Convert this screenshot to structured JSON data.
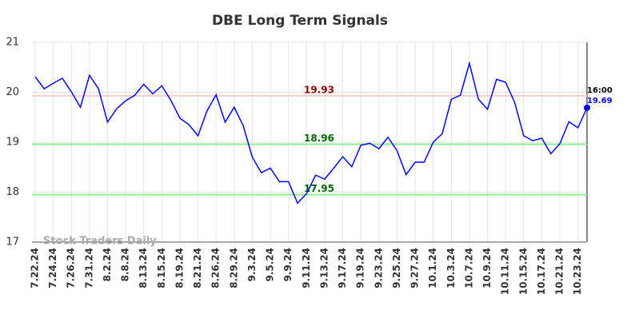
{
  "chart_data": {
    "type": "line",
    "title": "DBE Long Term Signals",
    "categories": [
      "7.22.24",
      null,
      "7.24.24",
      null,
      "7.26.24",
      null,
      "7.31.24",
      null,
      "8.2.24",
      null,
      "8.8.24",
      null,
      "8.13.24",
      null,
      "8.15.24",
      null,
      "8.19.24",
      null,
      "8.21.24",
      null,
      "8.26.24",
      null,
      "8.29.24",
      null,
      "9.3.24",
      null,
      "9.5.24",
      null,
      "9.9.24",
      null,
      "9.11.24",
      null,
      "9.13.24",
      null,
      "9.17.24",
      null,
      "9.19.24",
      null,
      "9.23.24",
      null,
      "9.25.24",
      null,
      "9.27.24",
      null,
      "10.1.24",
      null,
      "10.3.24",
      null,
      "10.7.24",
      null,
      "10.9.24",
      null,
      "10.11.24",
      null,
      "10.15.24",
      null,
      "10.17.24",
      null,
      "10.21.24",
      null,
      "10.23.24",
      null
    ],
    "values": [
      20.31,
      20.07,
      20.18,
      20.28,
      20.01,
      19.7,
      20.34,
      20.07,
      19.4,
      19.67,
      19.83,
      19.94,
      20.16,
      19.97,
      20.13,
      19.84,
      19.48,
      19.35,
      19.13,
      19.63,
      19.95,
      19.4,
      19.7,
      19.33,
      18.7,
      18.39,
      18.48,
      18.21,
      18.21,
      17.78,
      17.97,
      18.34,
      18.26,
      18.48,
      18.71,
      18.51,
      18.94,
      18.98,
      18.87,
      19.1,
      18.83,
      18.35,
      18.6,
      18.6,
      19.0,
      19.17,
      19.86,
      19.94,
      20.58,
      19.86,
      19.66,
      20.26,
      20.2,
      19.8,
      19.13,
      19.03,
      19.08,
      18.77,
      18.97,
      19.41,
      19.29,
      19.69
    ],
    "color": "#0000ff",
    "ylim": [
      17,
      21
    ],
    "yticks": [
      17,
      18,
      19,
      20,
      21
    ],
    "grid": true,
    "levels": [
      {
        "value": 19.93,
        "line_color": "#ffcccc",
        "label_color": "#8b0000"
      },
      {
        "value": 18.96,
        "line_color": "#90ee90",
        "label_color": "#006400"
      },
      {
        "value": 17.95,
        "line_color": "#90ee90",
        "label_color": "#006400"
      }
    ],
    "last_time_label": "16:00",
    "watermark": "Stock Traders Daily"
  }
}
